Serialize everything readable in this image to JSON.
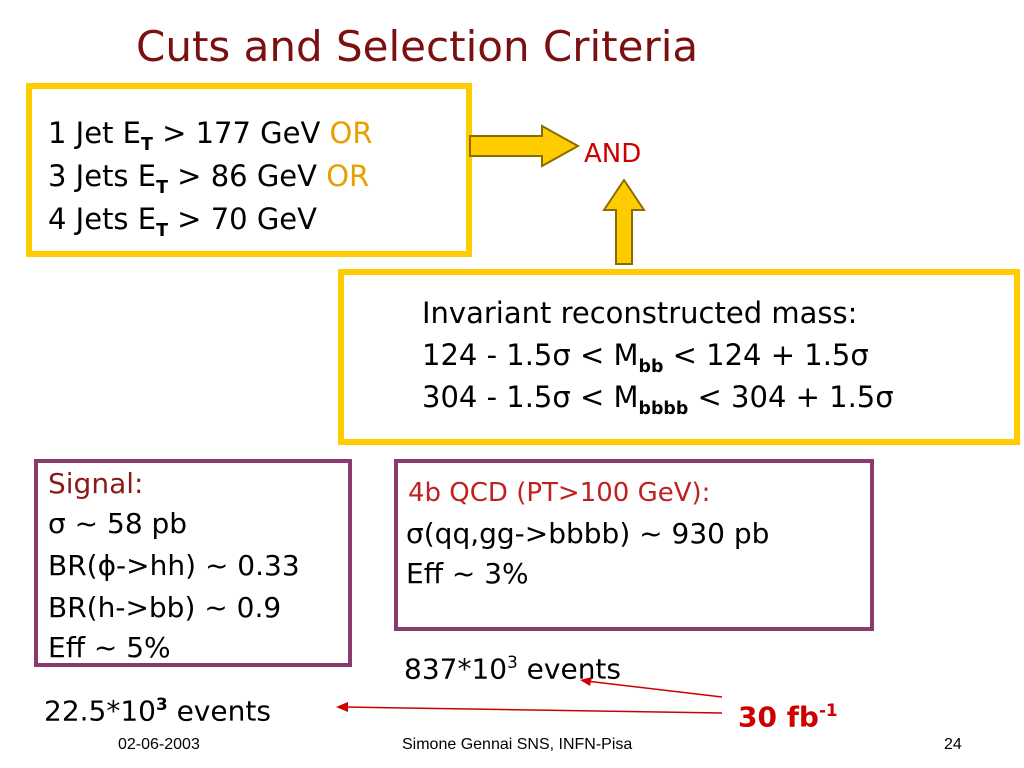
{
  "title": "Cuts and Selection Criteria",
  "jet_box": {
    "line1": {
      "prefix": "1 Jet  E",
      "sub": "T",
      "suffix": " > 177 GeV ",
      "or": "OR"
    },
    "line2": {
      "prefix": "3 Jets E",
      "sub": "T",
      "suffix": " > 86 GeV ",
      "or": "OR"
    },
    "line3": {
      "prefix": "4 Jets E",
      "sub": "T",
      "suffix": " > 70 GeV"
    }
  },
  "and_label": "AND",
  "mass_box": {
    "heading": "Invariant reconstructed mass:",
    "line1": {
      "prefix": "124 - 1.5σ < M",
      "sub": "bb",
      "suffix": " < 124 + 1.5σ"
    },
    "line2": {
      "prefix": "304 - 1.5σ < M",
      "sub": "bbbb",
      "suffix": " < 304 + 1.5σ"
    }
  },
  "signal_box": {
    "heading": "Signal:",
    "lines": [
      "σ ~ 58 pb",
      "BR(ϕ->hh) ~ 0.33",
      "BR(h->bb) ~ 0.9",
      "Eff ~ 5%"
    ]
  },
  "qcd_box": {
    "heading": "4b QCD (PT>100 GeV):",
    "lines": [
      "σ(qq,gg->bbbb) ~ 930 pb",
      "Eff ~ 3%"
    ]
  },
  "signal_events": {
    "prefix": "22.5*10",
    "sup": "3",
    "suffix": " events"
  },
  "qcd_events": {
    "prefix": "837*10",
    "sup": "3",
    "suffix": " events"
  },
  "luminosity": {
    "prefix": "30 fb",
    "sup": "-1"
  },
  "footer": {
    "date": "02-06-2003",
    "author": "Simone Gennai SNS, INFN-Pisa",
    "page": "24"
  },
  "colors": {
    "title": "#7a1010",
    "yellow_border": "#ffcc00",
    "purple_border": "#8b3a6e",
    "or_text": "#e8a000",
    "accent_red": "#cc0000"
  }
}
